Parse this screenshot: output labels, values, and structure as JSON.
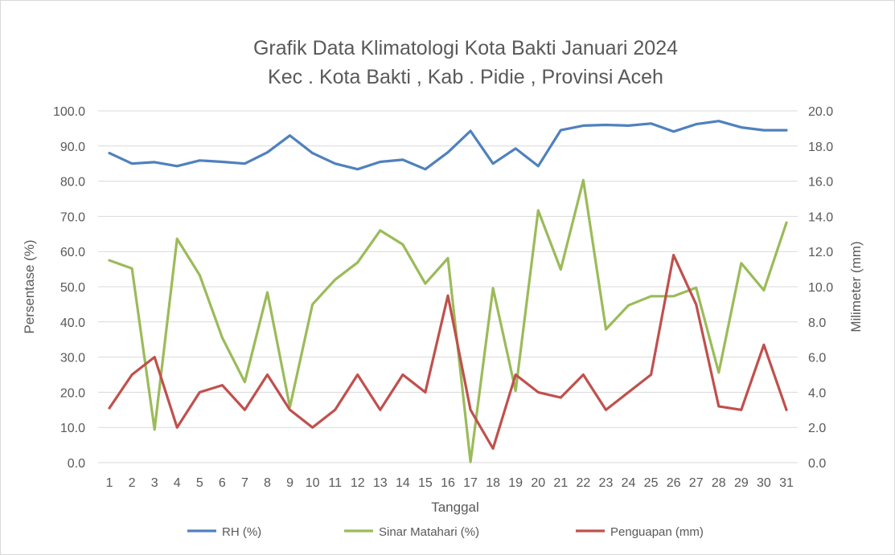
{
  "chart_data": {
    "type": "line",
    "title": "Grafik Data Klimatologi Kota Bakti Januari 2024",
    "subtitle": "Kec . Kota Bakti , Kab . Pidie , Provinsi  Aceh",
    "xlabel": "Tanggal",
    "ylabel_left": "Persentase (%)",
    "ylabel_right": "Milimeter (mm)",
    "x": [
      1,
      2,
      3,
      4,
      5,
      6,
      7,
      8,
      9,
      10,
      11,
      12,
      13,
      14,
      15,
      16,
      17,
      18,
      19,
      20,
      21,
      22,
      23,
      24,
      25,
      26,
      27,
      28,
      29,
      30,
      31
    ],
    "ylim_left": [
      0,
      100
    ],
    "ylim_right": [
      0,
      20
    ],
    "yticks_left": [
      "0.0",
      "10.0",
      "20.0",
      "30.0",
      "40.0",
      "50.0",
      "60.0",
      "70.0",
      "80.0",
      "90.0",
      "100.0"
    ],
    "yticks_right": [
      "0.0",
      "2.0",
      "4.0",
      "6.0",
      "8.0",
      "10.0",
      "12.0",
      "14.0",
      "16.0",
      "18.0",
      "20.0"
    ],
    "grid": true,
    "legend_position": "bottom",
    "series": [
      {
        "name": "RH (%)",
        "axis": "left",
        "color": "#4f81bd",
        "values": [
          88.0,
          85.0,
          85.4,
          84.3,
          85.9,
          85.5,
          85.0,
          88.2,
          93.0,
          88.0,
          85.0,
          83.4,
          85.5,
          86.1,
          83.4,
          88.2,
          94.3,
          85.0,
          89.3,
          84.3,
          94.5,
          95.8,
          96.0,
          95.8,
          96.4,
          94.1,
          96.2,
          97.1,
          95.3,
          94.5,
          94.5
        ]
      },
      {
        "name": "Sinar Matahari (%)",
        "axis": "left",
        "color": "#9bbb59",
        "values": [
          57.5,
          55.2,
          9.4,
          63.6,
          53.3,
          35.5,
          22.9,
          48.4,
          15.8,
          45.0,
          52.0,
          56.9,
          66.0,
          62.0,
          50.9,
          58.1,
          0.2,
          49.6,
          20.4,
          71.7,
          54.9,
          80.3,
          37.9,
          44.7,
          47.3,
          47.3,
          49.7,
          25.6,
          56.7,
          49.0,
          68.2
        ]
      },
      {
        "name": "Penguapan (mm)",
        "axis": "right",
        "color": "#c0504d",
        "values": [
          3.1,
          5.0,
          6.0,
          2.0,
          4.0,
          4.4,
          3.0,
          5.0,
          3.0,
          2.0,
          3.0,
          5.0,
          3.0,
          5.0,
          4.0,
          9.5,
          3.0,
          0.8,
          5.0,
          4.0,
          3.7,
          5.0,
          3.0,
          4.0,
          5.0,
          11.8,
          9.0,
          3.2,
          3.0,
          6.7,
          3.0
        ]
      }
    ]
  }
}
